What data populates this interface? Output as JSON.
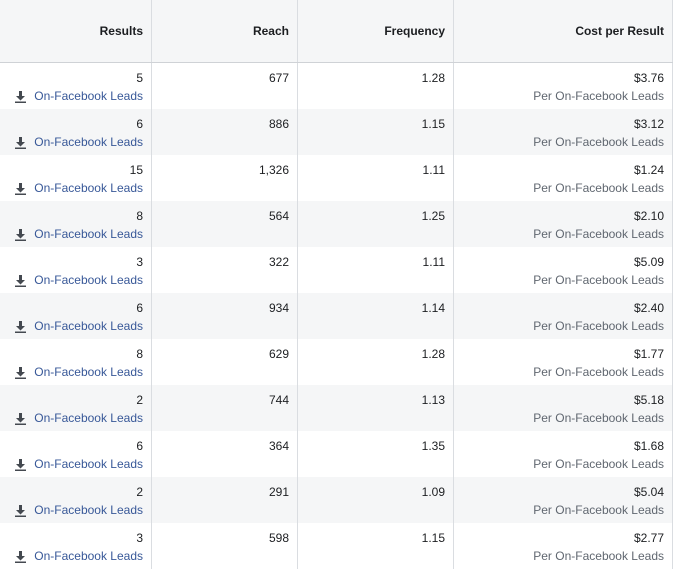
{
  "columns": {
    "results": "Results",
    "reach": "Reach",
    "frequency": "Frequency",
    "cost": "Cost per Result"
  },
  "result_type": "On-Facebook Leads",
  "cost_sub": "Per On-Facebook Leads",
  "rows": [
    {
      "results": "5",
      "reach": "677",
      "frequency": "1.28",
      "cost": "$3.76"
    },
    {
      "results": "6",
      "reach": "886",
      "frequency": "1.15",
      "cost": "$3.12"
    },
    {
      "results": "15",
      "reach": "1,326",
      "frequency": "1.11",
      "cost": "$1.24"
    },
    {
      "results": "8",
      "reach": "564",
      "frequency": "1.25",
      "cost": "$2.10"
    },
    {
      "results": "3",
      "reach": "322",
      "frequency": "1.11",
      "cost": "$5.09"
    },
    {
      "results": "6",
      "reach": "934",
      "frequency": "1.14",
      "cost": "$2.40"
    },
    {
      "results": "8",
      "reach": "629",
      "frequency": "1.28",
      "cost": "$1.77"
    },
    {
      "results": "2",
      "reach": "744",
      "frequency": "1.13",
      "cost": "$5.18"
    },
    {
      "results": "6",
      "reach": "364",
      "frequency": "1.35",
      "cost": "$1.68"
    },
    {
      "results": "2",
      "reach": "291",
      "frequency": "1.09",
      "cost": "$5.04"
    },
    {
      "results": "3",
      "reach": "598",
      "frequency": "1.15",
      "cost": "$2.77"
    }
  ],
  "icons": {
    "result_icon": "download-icon"
  },
  "colors": {
    "link": "#385898",
    "header_bg": "#f5f6f7",
    "alt_row_bg": "#f5f6f7",
    "sub_text": "#606770"
  }
}
